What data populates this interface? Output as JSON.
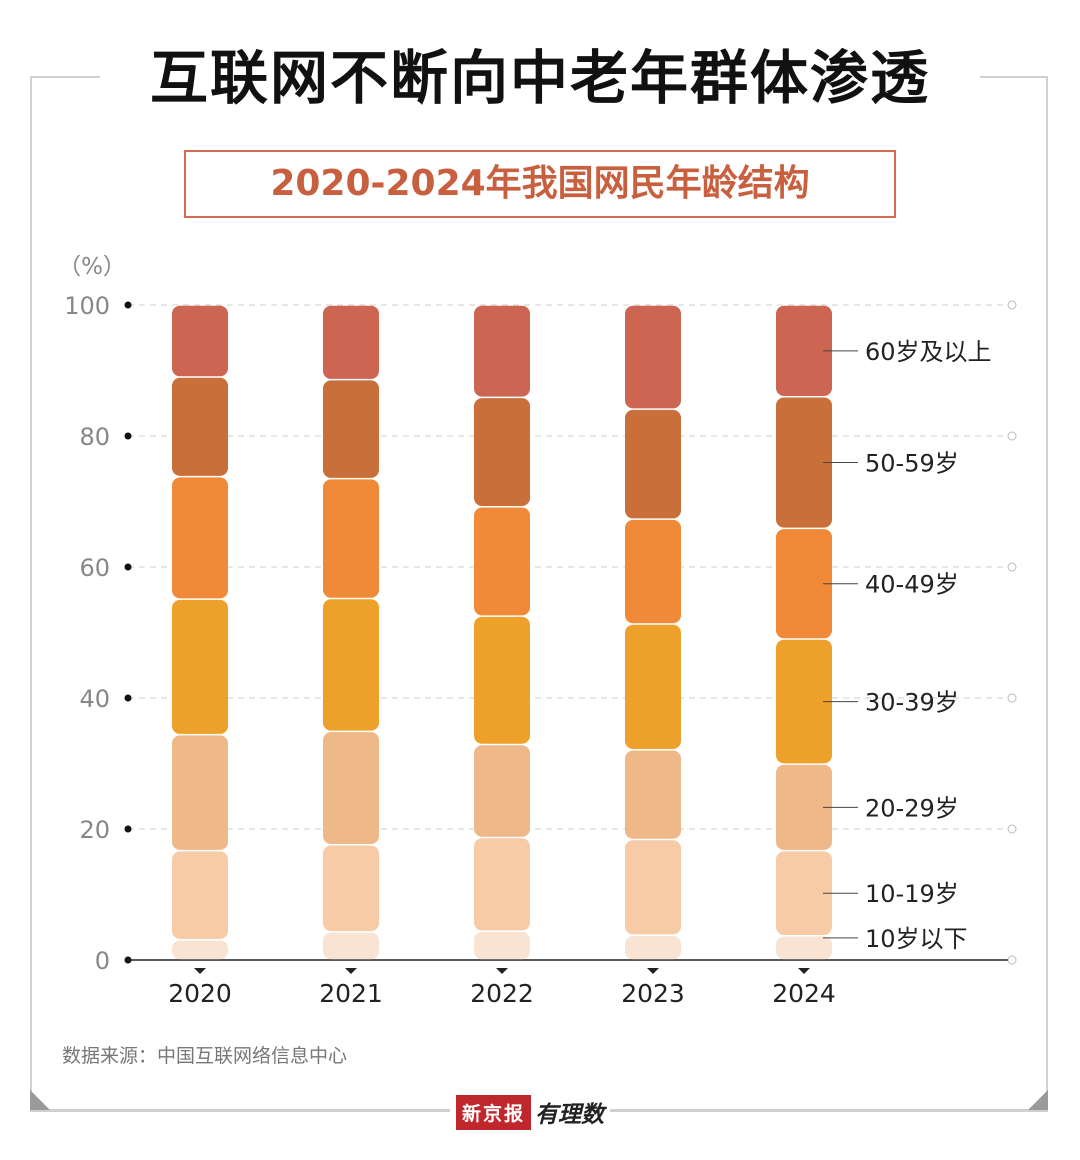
{
  "title": "互联网不断向中老年群体渗透",
  "source": "数据来源：中国互联网络信息中心",
  "brand": {
    "name": "新京报",
    "column": "有理数"
  },
  "chart_data": {
    "type": "bar",
    "stacked": true,
    "title": "2020-2024年我国网民年龄结构",
    "ylabel": "（%）",
    "ylim": [
      0,
      100
    ],
    "yticks": [
      0,
      20,
      40,
      60,
      80,
      100
    ],
    "grid": true,
    "categories": [
      "2020",
      "2021",
      "2022",
      "2023",
      "2024"
    ],
    "series": [
      {
        "name": "10岁以下",
        "color": "#f9e3d3",
        "values": [
          3.1,
          4.3,
          4.4,
          3.8,
          3.7
        ]
      },
      {
        "name": "10-19岁",
        "color": "#f6cba6",
        "values": [
          13.6,
          13.3,
          14.3,
          14.6,
          13.0
        ]
      },
      {
        "name": "20-29岁",
        "color": "#efb888",
        "values": [
          17.7,
          17.3,
          14.2,
          13.7,
          13.2
        ]
      },
      {
        "name": "30-39岁",
        "color": "#eea12a",
        "values": [
          20.7,
          20.3,
          19.6,
          19.2,
          19.1
        ]
      },
      {
        "name": "40-49岁",
        "color": "#f08a38",
        "values": [
          18.7,
          18.3,
          16.7,
          16.0,
          16.9
        ]
      },
      {
        "name": "50-59岁",
        "color": "#c96f3a",
        "values": [
          15.2,
          15.1,
          16.7,
          16.8,
          20.1
        ]
      },
      {
        "name": "60岁及以上",
        "color": "#cc6551",
        "values": [
          11.0,
          11.4,
          14.1,
          15.9,
          14.0
        ]
      }
    ]
  }
}
